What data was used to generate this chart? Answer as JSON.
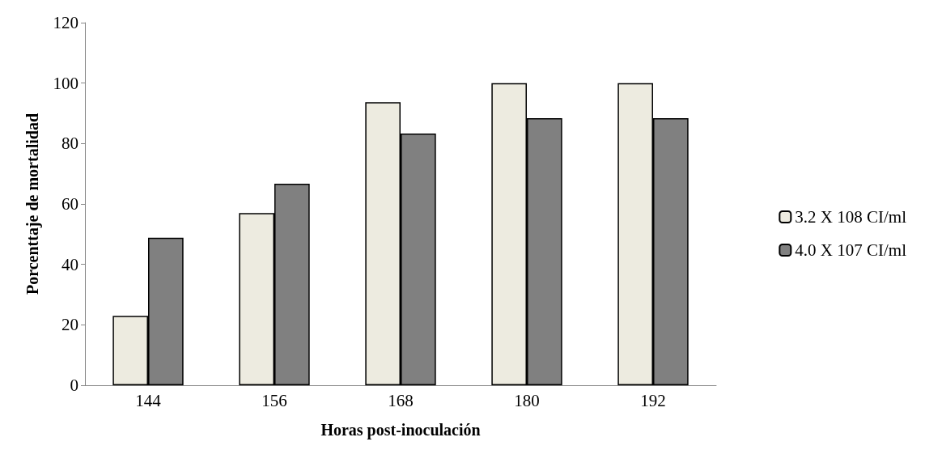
{
  "chart_data": {
    "type": "bar",
    "xlabel": "Horas post-inoculación",
    "ylabel": "Porcenttaje de mortalidad",
    "categories": [
      "144",
      "156",
      "168",
      "180",
      "192"
    ],
    "series": [
      {
        "name": "3.2 X 108 CI/ml",
        "color": "#edebe0",
        "values": [
          23,
          57,
          93.7,
          100,
          100
        ]
      },
      {
        "name": "4.0 X 107 CI/ml",
        "color": "#808080",
        "values": [
          48.8,
          66.7,
          83.3,
          88.4,
          88.4
        ]
      }
    ],
    "ylim": [
      0,
      120
    ],
    "yticks": [
      0,
      20,
      40,
      60,
      80,
      100,
      120
    ],
    "grid": false,
    "legend": "right"
  }
}
